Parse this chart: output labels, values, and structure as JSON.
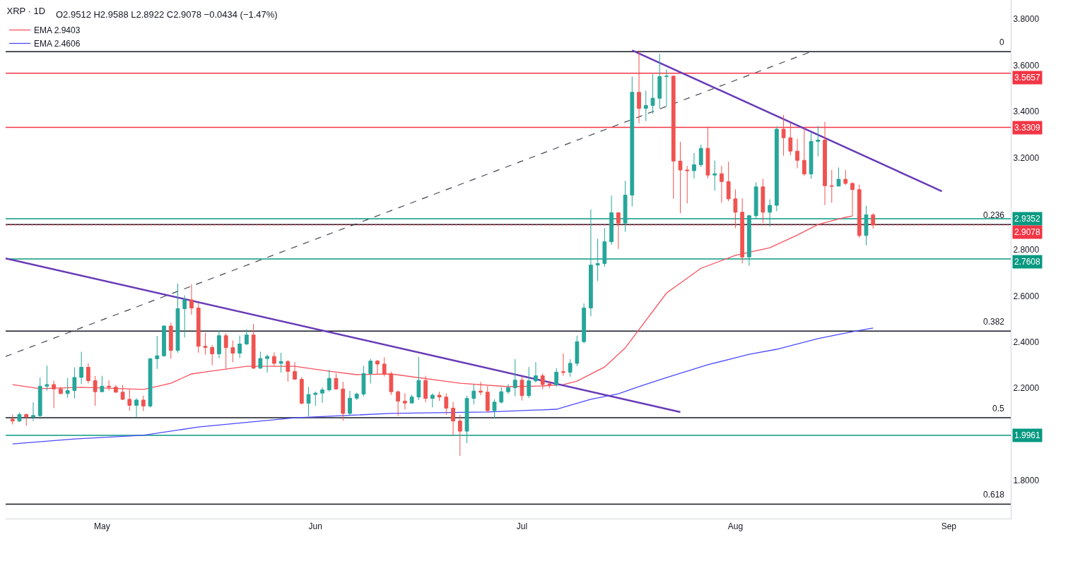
{
  "chart_data": {
    "type": "candlestick",
    "title": "XRP · 1D",
    "subtitle": "O2.9512 H2.9588 L2.8922 C2.9078 −0.0434 (−1.47%)",
    "x": [
      "--04-18",
      "--04-19",
      "--04-20",
      "--04-21",
      "--04-22",
      "--04-23",
      "--04-24",
      "--04-25",
      "--04-26",
      "--04-27",
      "--04-28",
      "--04-29",
      "--04-30",
      "--05-01",
      "--05-02",
      "--05-03",
      "--05-04",
      "--05-05",
      "--05-06",
      "--05-07",
      "--05-08",
      "--05-09",
      "--05-10",
      "--05-11",
      "--05-12",
      "--05-13",
      "--05-14",
      "--05-15",
      "--05-16",
      "--05-17",
      "--05-18",
      "--05-19",
      "--05-20",
      "--05-21",
      "--05-22",
      "--05-23",
      "--05-24",
      "--05-25",
      "--05-26",
      "--05-27",
      "--05-28",
      "--05-29",
      "--05-30",
      "--05-31",
      "--06-01",
      "--06-02",
      "--06-03",
      "--06-04",
      "--06-05",
      "--06-06",
      "--06-07",
      "--06-08",
      "--06-09",
      "--06-10",
      "--06-11",
      "--06-12",
      "--06-13",
      "--06-14",
      "--06-15",
      "--06-16",
      "--06-17",
      "--06-18",
      "--06-19",
      "--06-20",
      "--06-21",
      "--06-22",
      "--06-23",
      "--06-24",
      "--06-25",
      "--06-26",
      "--06-27",
      "--06-28",
      "--06-29",
      "--06-30",
      "--07-01",
      "--07-02",
      "--07-03",
      "--07-04",
      "--07-05",
      "--07-06",
      "--07-07",
      "--07-08",
      "--07-09",
      "--07-10",
      "--07-11",
      "--07-12",
      "--07-13",
      "--07-14",
      "--07-15",
      "--07-16",
      "--07-17",
      "--07-18",
      "--07-19",
      "--07-20",
      "--07-21",
      "--07-22",
      "--07-23",
      "--07-24",
      "--07-25",
      "--07-26",
      "--07-27",
      "--07-28",
      "--07-29",
      "--07-30",
      "--07-31",
      "--08-01",
      "--08-02",
      "--08-03",
      "--08-04",
      "--08-05",
      "--08-06",
      "--08-07",
      "--08-08",
      "--08-09",
      "--08-10",
      "--08-11",
      "--08-12",
      "--08-13",
      "--08-14",
      "--08-15",
      "--08-16",
      "--08-17",
      "--08-18",
      "--08-19",
      "--08-20",
      "--08-21"
    ],
    "ohlc": [
      [
        2.066,
        2.086,
        2.043,
        2.058
      ],
      [
        2.058,
        2.095,
        2.054,
        2.086
      ],
      [
        2.086,
        2.09,
        2.038,
        2.076
      ],
      [
        2.076,
        2.139,
        2.058,
        2.082
      ],
      [
        2.081,
        2.247,
        2.066,
        2.209
      ],
      [
        2.209,
        2.298,
        2.19,
        2.216
      ],
      [
        2.216,
        2.233,
        2.114,
        2.197
      ],
      [
        2.197,
        2.206,
        2.174,
        2.177
      ],
      [
        2.177,
        2.244,
        2.159,
        2.19
      ],
      [
        2.19,
        2.291,
        2.156,
        2.247
      ],
      [
        2.247,
        2.358,
        2.218,
        2.291
      ],
      [
        2.291,
        2.309,
        2.221,
        2.233
      ],
      [
        2.233,
        2.253,
        2.124,
        2.185
      ],
      [
        2.185,
        2.254,
        2.185,
        2.209
      ],
      [
        2.209,
        2.234,
        2.19,
        2.205
      ],
      [
        2.205,
        2.214,
        2.18,
        2.183
      ],
      [
        2.183,
        2.214,
        2.149,
        2.152
      ],
      [
        2.152,
        2.195,
        2.103,
        2.126
      ],
      [
        2.126,
        2.157,
        2.076,
        2.149
      ],
      [
        2.149,
        2.168,
        2.101,
        2.123
      ],
      [
        2.123,
        2.33,
        2.117,
        2.328
      ],
      [
        2.328,
        2.427,
        2.284,
        2.341
      ],
      [
        2.341,
        2.473,
        2.336,
        2.47
      ],
      [
        2.47,
        2.484,
        2.328,
        2.364
      ],
      [
        2.364,
        2.654,
        2.354,
        2.545
      ],
      [
        2.545,
        2.603,
        2.42,
        2.583
      ],
      [
        2.583,
        2.651,
        2.519,
        2.548
      ],
      [
        2.548,
        2.57,
        2.354,
        2.382
      ],
      [
        2.382,
        2.44,
        2.346,
        2.377
      ],
      [
        2.377,
        2.386,
        2.3,
        2.349
      ],
      [
        2.349,
        2.451,
        2.33,
        2.428
      ],
      [
        2.428,
        2.44,
        2.285,
        2.376
      ],
      [
        2.376,
        2.407,
        2.313,
        2.352
      ],
      [
        2.352,
        2.428,
        2.331,
        2.392
      ],
      [
        2.392,
        2.456,
        2.387,
        2.431
      ],
      [
        2.431,
        2.479,
        2.284,
        2.287
      ],
      [
        2.287,
        2.359,
        2.284,
        2.329
      ],
      [
        2.329,
        2.346,
        2.268,
        2.338
      ],
      [
        2.338,
        2.356,
        2.296,
        2.308
      ],
      [
        2.308,
        2.354,
        2.268,
        2.316
      ],
      [
        2.316,
        2.322,
        2.229,
        2.273
      ],
      [
        2.273,
        2.313,
        2.237,
        2.239
      ],
      [
        2.239,
        2.248,
        2.13,
        2.135
      ],
      [
        2.135,
        2.206,
        2.078,
        2.173
      ],
      [
        2.173,
        2.186,
        2.124,
        2.179
      ],
      [
        2.179,
        2.204,
        2.137,
        2.193
      ],
      [
        2.193,
        2.28,
        2.186,
        2.243
      ],
      [
        2.243,
        2.264,
        2.193,
        2.197
      ],
      [
        2.197,
        2.228,
        2.059,
        2.091
      ],
      [
        2.091,
        2.189,
        2.083,
        2.157
      ],
      [
        2.157,
        2.181,
        2.149,
        2.175
      ],
      [
        2.175,
        2.297,
        2.165,
        2.264
      ],
      [
        2.264,
        2.328,
        2.221,
        2.318
      ],
      [
        2.318,
        2.323,
        2.262,
        2.305
      ],
      [
        2.305,
        2.334,
        2.251,
        2.262
      ],
      [
        2.262,
        2.272,
        2.171,
        2.185
      ],
      [
        2.185,
        2.19,
        2.08,
        2.144
      ],
      [
        2.144,
        2.178,
        2.108,
        2.136
      ],
      [
        2.136,
        2.172,
        2.136,
        2.162
      ],
      [
        2.162,
        2.336,
        2.149,
        2.234
      ],
      [
        2.234,
        2.254,
        2.139,
        2.156
      ],
      [
        2.156,
        2.178,
        2.117,
        2.17
      ],
      [
        2.17,
        2.185,
        2.145,
        2.162
      ],
      [
        2.162,
        2.178,
        2.085,
        2.114
      ],
      [
        2.114,
        2.141,
        1.997,
        2.058
      ],
      [
        2.058,
        2.085,
        1.907,
        2.014
      ],
      [
        2.014,
        2.168,
        1.962,
        2.156
      ],
      [
        2.156,
        2.216,
        2.13,
        2.188
      ],
      [
        2.188,
        2.228,
        2.17,
        2.183
      ],
      [
        2.183,
        2.209,
        2.094,
        2.103
      ],
      [
        2.103,
        2.152,
        2.068,
        2.14
      ],
      [
        2.14,
        2.205,
        2.133,
        2.185
      ],
      [
        2.185,
        2.218,
        2.175,
        2.202
      ],
      [
        2.202,
        2.326,
        2.165,
        2.235
      ],
      [
        2.235,
        2.251,
        2.147,
        2.168
      ],
      [
        2.168,
        2.292,
        2.158,
        2.232
      ],
      [
        2.232,
        2.313,
        2.226,
        2.254
      ],
      [
        2.254,
        2.264,
        2.195,
        2.216
      ],
      [
        2.219,
        2.232,
        2.201,
        2.215
      ],
      [
        2.215,
        2.287,
        2.206,
        2.27
      ],
      [
        2.272,
        2.351,
        2.254,
        2.269
      ],
      [
        2.269,
        2.326,
        2.25,
        2.308
      ],
      [
        2.308,
        2.428,
        2.296,
        2.402
      ],
      [
        2.402,
        2.568,
        2.395,
        2.548
      ],
      [
        2.548,
        2.975,
        2.512,
        2.734
      ],
      [
        2.734,
        2.848,
        2.665,
        2.741
      ],
      [
        2.741,
        2.894,
        2.726,
        2.835
      ],
      [
        2.835,
        3.035,
        2.822,
        2.961
      ],
      [
        2.961,
        2.961,
        2.804,
        2.916
      ],
      [
        2.916,
        3.099,
        2.878,
        3.037
      ],
      [
        3.037,
        3.551,
        2.988,
        3.483
      ],
      [
        3.483,
        3.664,
        3.348,
        3.413
      ],
      [
        3.413,
        3.49,
        3.358,
        3.426
      ],
      [
        3.426,
        3.561,
        3.39,
        3.457
      ],
      [
        3.457,
        3.65,
        3.413,
        3.551
      ],
      [
        3.551,
        3.582,
        3.421,
        3.553
      ],
      [
        3.553,
        3.556,
        3.021,
        3.185
      ],
      [
        3.185,
        3.268,
        2.959,
        3.146
      ],
      [
        3.146,
        3.164,
        3.002,
        3.143
      ],
      [
        3.143,
        3.22,
        3.11,
        3.169
      ],
      [
        3.169,
        3.256,
        3.159,
        3.24
      ],
      [
        3.24,
        3.33,
        3.11,
        3.124
      ],
      [
        3.124,
        3.187,
        3.057,
        3.13
      ],
      [
        3.13,
        3.164,
        3.004,
        3.096
      ],
      [
        3.096,
        3.182,
        3.011,
        3.021
      ],
      [
        3.021,
        3.062,
        2.894,
        2.963
      ],
      [
        2.963,
        3.023,
        2.741,
        2.769
      ],
      [
        2.769,
        2.952,
        2.731,
        2.948
      ],
      [
        2.948,
        3.093,
        2.935,
        3.073
      ],
      [
        3.073,
        3.108,
        2.917,
        2.963
      ],
      [
        2.963,
        3.019,
        2.901,
        2.993
      ],
      [
        2.993,
        3.334,
        2.967,
        3.323
      ],
      [
        3.323,
        3.385,
        3.208,
        3.286
      ],
      [
        3.286,
        3.351,
        3.21,
        3.228
      ],
      [
        3.228,
        3.281,
        3.154,
        3.188
      ],
      [
        3.188,
        3.33,
        3.12,
        3.129
      ],
      [
        3.129,
        3.307,
        3.108,
        3.27
      ],
      [
        3.27,
        3.337,
        3.205,
        3.276
      ],
      [
        3.276,
        3.355,
        2.994,
        3.078
      ],
      [
        3.078,
        3.146,
        3.004,
        3.076
      ],
      [
        3.076,
        3.157,
        3.076,
        3.106
      ],
      [
        3.106,
        3.146,
        3.081,
        3.088
      ],
      [
        3.088,
        3.093,
        2.947,
        3.061
      ],
      [
        3.061,
        3.083,
        2.853,
        2.862
      ],
      [
        2.862,
        2.991,
        2.82,
        2.952
      ],
      [
        2.9512,
        2.9588,
        2.8922,
        2.9078
      ]
    ],
    "colors": [
      "#ef5350",
      "#26a69a",
      "#ef5350",
      "#26a69a",
      "#26a69a",
      "#26a69a",
      "#ef5350",
      "#ef5350",
      "#26a69a",
      "#26a69a",
      "#26a69a",
      "#ef5350",
      "#ef5350",
      "#26a69a",
      "#ef5350",
      "#ef5350",
      "#ef5350",
      "#ef5350",
      "#26a69a",
      "#ef5350",
      "#26a69a",
      "#26a69a",
      "#26a69a",
      "#ef5350",
      "#26a69a",
      "#26a69a",
      "#ef5350",
      "#ef5350",
      "#ef5350",
      "#ef5350",
      "#26a69a",
      "#ef5350",
      "#ef5350",
      "#26a69a",
      "#26a69a",
      "#ef5350",
      "#26a69a",
      "#26a69a",
      "#ef5350",
      "#26a69a",
      "#ef5350",
      "#ef5350",
      "#ef5350",
      "#26a69a",
      "#26a69a",
      "#26a69a",
      "#26a69a",
      "#ef5350",
      "#ef5350",
      "#26a69a",
      "#26a69a",
      "#26a69a",
      "#26a69a",
      "#ef5350",
      "#ef5350",
      "#ef5350",
      "#ef5350",
      "#ef5350",
      "#26a69a",
      "#26a69a",
      "#ef5350",
      "#26a69a",
      "#ef5350",
      "#ef5350",
      "#ef5350",
      "#ef5350",
      "#26a69a",
      "#26a69a",
      "#ef5350",
      "#ef5350",
      "#26a69a",
      "#26a69a",
      "#26a69a",
      "#26a69a",
      "#ef5350",
      "#26a69a",
      "#26a69a",
      "#ef5350",
      "#ef5350",
      "#26a69a",
      "#ef5350",
      "#26a69a",
      "#26a69a",
      "#26a69a",
      "#26a69a",
      "#26a69a",
      "#26a69a",
      "#26a69a",
      "#ef5350",
      "#26a69a",
      "#26a69a",
      "#ef5350",
      "#26a69a",
      "#26a69a",
      "#26a69a",
      "#26a69a",
      "#ef5350",
      "#ef5350",
      "#ef5350",
      "#26a69a",
      "#26a69a",
      "#ef5350",
      "#26a69a",
      "#ef5350",
      "#ef5350",
      "#ef5350",
      "#ef5350",
      "#26a69a",
      "#26a69a",
      "#ef5350",
      "#26a69a",
      "#26a69a",
      "#ef5350",
      "#ef5350",
      "#ef5350",
      "#ef5350",
      "#26a69a",
      "#26a69a",
      "#ef5350",
      "#ef5350",
      "#26a69a",
      "#ef5350",
      "#ef5350",
      "#ef5350",
      "#26a69a",
      "#ef5350"
    ],
    "series": [
      {
        "name": "EMA 2.9403",
        "type": "line",
        "color": "#f7525f",
        "x": [
          "--04-18",
          "--04-22",
          "--04-28",
          "--05-07",
          "--05-08",
          "--05-11",
          "--05-14",
          "--05-16",
          "--05-22",
          "--05-29",
          "--06-03",
          "--06-07",
          "--06-12",
          "--06-22",
          "--06-29",
          "--07-04",
          "--07-07",
          "--07-09",
          "--07-13",
          "--07-16",
          "--07-22",
          "--07-27",
          "--08-01",
          "--08-06",
          "--08-10",
          "--08-13",
          "--08-17",
          "--08-18"
        ],
        "values": [
          2.216,
          2.198,
          2.204,
          2.195,
          2.201,
          2.222,
          2.262,
          2.271,
          2.295,
          2.295,
          2.274,
          2.259,
          2.262,
          2.222,
          2.207,
          2.21,
          2.216,
          2.231,
          2.292,
          2.375,
          2.613,
          2.72,
          2.776,
          2.809,
          2.864,
          2.91,
          2.941,
          2.947
        ]
      },
      {
        "name": "EMA 2.4606",
        "type": "line",
        "color": "#4a4aff",
        "x": [
          "--04-18",
          "--04-27",
          "--05-07",
          "--05-15",
          "--05-29",
          "--06-12",
          "--06-26",
          "--07-06",
          "--07-11",
          "--07-15",
          "--07-18",
          "--07-22",
          "--07-28",
          "--08-03",
          "--08-07",
          "--08-13",
          "--08-18",
          "--08-21"
        ],
        "values": [
          1.959,
          1.98,
          1.996,
          2.032,
          2.072,
          2.091,
          2.097,
          2.109,
          2.152,
          2.176,
          2.207,
          2.246,
          2.302,
          2.347,
          2.369,
          2.415,
          2.445,
          2.461
        ]
      },
      {
        "type": "line",
        "color": "#673ab7",
        "x": [
          "--04-17",
          "--07-24"
        ],
        "values": [
          2.763,
          2.097
        ]
      },
      {
        "type": "line",
        "color": "#673ab7",
        "x": [
          "--07-17",
          "--08-31"
        ],
        "values": [
          3.665,
          3.054
        ]
      },
      {
        "type": "line",
        "color": "#434651",
        "line_style": "dashed",
        "x": [
          "--04-17",
          "--08-12"
        ],
        "values": [
          2.338,
          3.659
        ]
      }
    ],
    "xlim": [
      "--04-17",
      "--09-10"
    ],
    "xticks": [
      {
        "value": "--05-01",
        "label": "May"
      },
      {
        "value": "--06-01",
        "label": "Jun"
      },
      {
        "value": "--07-01",
        "label": "Jul"
      },
      {
        "value": "--08-01",
        "label": "Aug"
      },
      {
        "value": "--09-01",
        "label": "Sep"
      }
    ],
    "ylim": [
      1.635,
      3.883
    ],
    "yticks": [
      {
        "value": 1.8,
        "label": "1.8000"
      },
      {
        "value": 2.2,
        "label": "2.2000"
      },
      {
        "value": 2.4,
        "label": "2.4000"
      },
      {
        "value": 2.6,
        "label": "2.6000"
      },
      {
        "value": 2.8,
        "label": "2.8000"
      },
      {
        "value": 3.2,
        "label": "3.2000"
      },
      {
        "value": 3.4,
        "label": "3.4000"
      },
      {
        "value": 3.6,
        "label": "3.6000"
      },
      {
        "value": 3.8,
        "label": "3.8000"
      }
    ],
    "ref_lines": [
      {
        "axis": "y",
        "value": 3.659,
        "color": "#131722"
      },
      {
        "axis": "y",
        "value": 3.5657,
        "label": "3.5657",
        "color": "#f23645"
      },
      {
        "axis": "y",
        "value": 3.3309,
        "label": "3.3309",
        "color": "#f23645"
      },
      {
        "axis": "y",
        "value": 2.9352,
        "label": "2.9352",
        "color": "#089981"
      },
      {
        "axis": "y",
        "value": 2.91,
        "color": "#131722"
      },
      {
        "axis": "y",
        "value": 2.9078,
        "label": "2.9078",
        "color": "#f23645",
        "line_style": "dotted"
      },
      {
        "axis": "y",
        "value": 2.7608,
        "label": "2.7608",
        "color": "#089981"
      },
      {
        "axis": "y",
        "value": 2.448,
        "color": "#131722"
      },
      {
        "axis": "y",
        "value": 2.072,
        "color": "#131722"
      },
      {
        "axis": "y",
        "value": 1.9961,
        "label": "1.9961",
        "color": "#089981"
      },
      {
        "axis": "y",
        "value": 1.698,
        "color": "#131722"
      }
    ],
    "annotations": [
      {
        "text": "0",
        "y": 3.659
      },
      {
        "text": "0.236",
        "y": 2.91
      },
      {
        "text": "0.382",
        "y": 2.448
      },
      {
        "text": "0.5",
        "y": 2.072
      },
      {
        "text": "0.618",
        "y": 1.698
      }
    ],
    "legend": "top left"
  }
}
